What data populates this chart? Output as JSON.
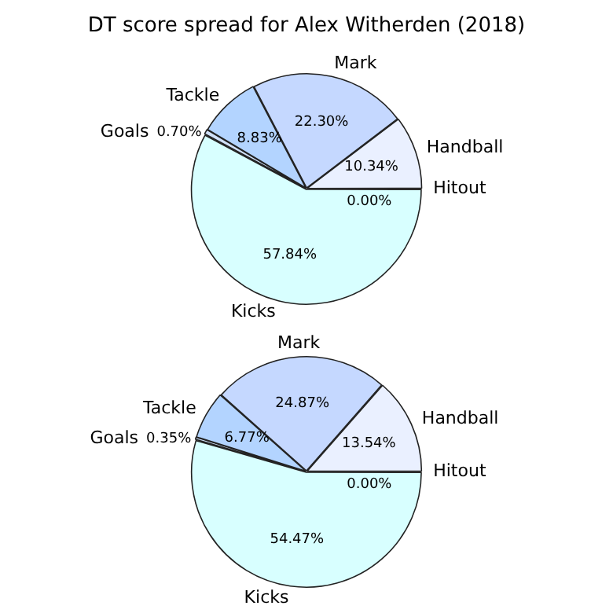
{
  "chart_data": [
    {
      "type": "pie",
      "title": "DT score spread for Alex Witherden (2018)",
      "categories": [
        "Hitout",
        "Handball",
        "Mark",
        "Tackle",
        "Goals",
        "Kicks"
      ],
      "colors": [
        "#c8c8e8",
        "#eaf0ff",
        "#c5d8ff",
        "#b3d4ff",
        "#d0e0f8",
        "#d8ffff"
      ],
      "values": [
        0.0,
        10.34,
        22.3,
        8.83,
        0.7,
        57.84
      ],
      "value_labels": [
        "0.00%",
        "10.34%",
        "22.30%",
        "8.83%",
        "0.70%",
        "57.84%"
      ],
      "legend": false
    },
    {
      "type": "pie",
      "categories": [
        "Hitout",
        "Handball",
        "Mark",
        "Tackle",
        "Goals",
        "Kicks"
      ],
      "colors": [
        "#c8c8e8",
        "#eaf0ff",
        "#c5d8ff",
        "#b3d4ff",
        "#d0e0f8",
        "#d8ffff"
      ],
      "values": [
        0.0,
        13.54,
        24.87,
        6.77,
        0.35,
        54.47
      ],
      "value_labels": [
        "0.00%",
        "13.54%",
        "24.87%",
        "6.77%",
        "0.35%",
        "54.47%"
      ],
      "legend": false
    }
  ]
}
